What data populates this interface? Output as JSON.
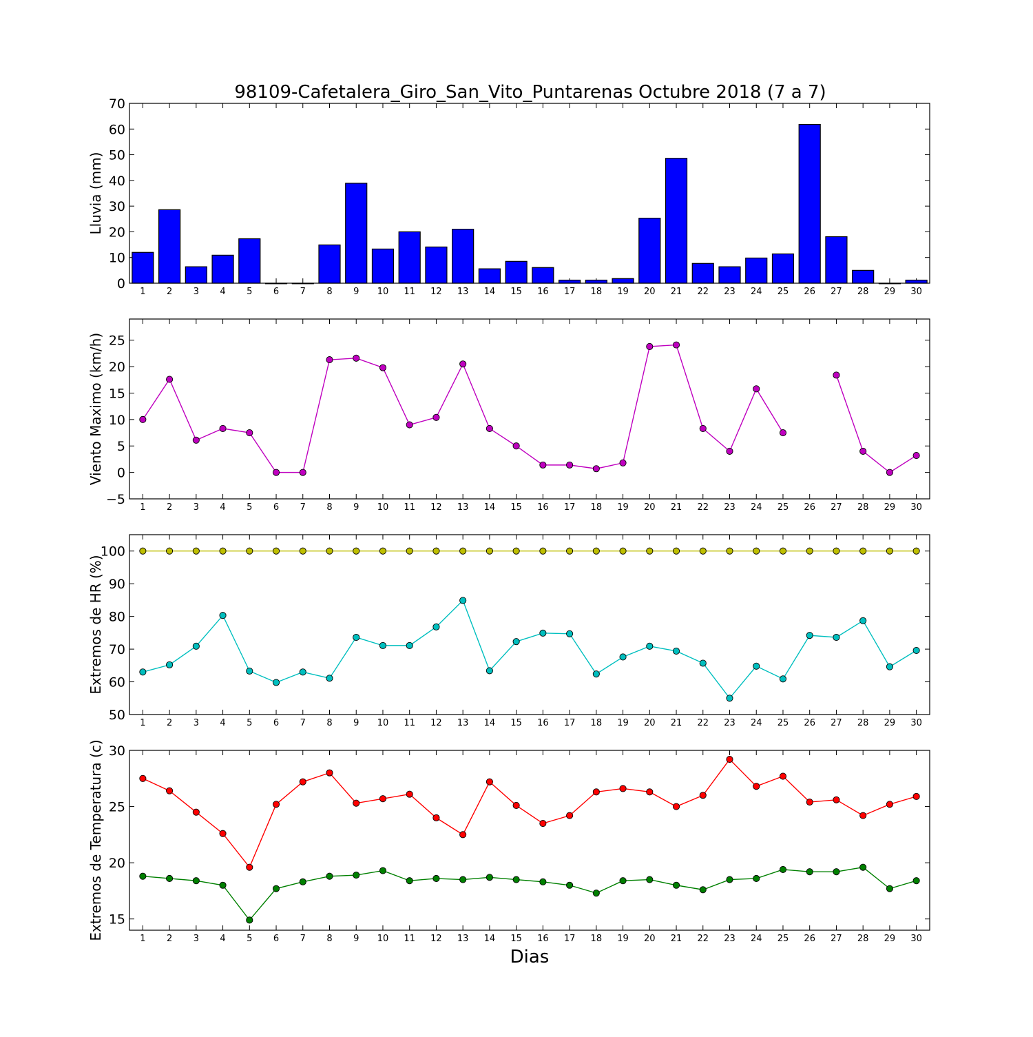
{
  "figure": {
    "title": "98109-Cafetalera_Giro_San_Vito_Puntarenas Octubre 2018  (7 a 7)",
    "xlabel": "Dias"
  },
  "chart_data": [
    {
      "type": "bar",
      "ylabel": "Lluvia (mm)",
      "xlim": [
        0.5,
        30.5
      ],
      "ylim": [
        0,
        70
      ],
      "yticks": [
        0,
        10,
        20,
        30,
        40,
        50,
        60,
        70
      ],
      "categories": [
        1,
        2,
        3,
        4,
        5,
        6,
        7,
        8,
        9,
        10,
        11,
        12,
        13,
        14,
        15,
        16,
        17,
        18,
        19,
        20,
        21,
        22,
        23,
        24,
        25,
        26,
        27,
        28,
        29,
        30
      ],
      "values": [
        12.0,
        28.6,
        6.4,
        10.9,
        17.3,
        0,
        0,
        14.9,
        38.9,
        13.3,
        20.0,
        14.1,
        21.0,
        5.6,
        8.5,
        6.1,
        1.2,
        1.2,
        1.8,
        25.3,
        48.6,
        7.7,
        6.4,
        9.8,
        11.4,
        61.8,
        18.1,
        5.0,
        0,
        1.2
      ],
      "color": "#0000ff"
    },
    {
      "type": "line",
      "ylabel": "Viento Maximo (km/h)",
      "xlim": [
        0.5,
        30.5
      ],
      "ylim": [
        -5,
        29
      ],
      "yticks": [
        -5,
        0,
        5,
        10,
        15,
        20,
        25
      ],
      "x": [
        1,
        2,
        3,
        4,
        5,
        6,
        7,
        8,
        9,
        10,
        11,
        12,
        13,
        14,
        15,
        16,
        17,
        18,
        19,
        20,
        21,
        22,
        23,
        24,
        25,
        26,
        27,
        28,
        29,
        30
      ],
      "series": [
        {
          "color": "#bf00bf",
          "values": [
            10.0,
            17.6,
            6.1,
            8.3,
            7.5,
            0,
            0,
            21.3,
            21.6,
            19.8,
            9.0,
            10.4,
            20.5,
            8.3,
            5.0,
            1.4,
            1.4,
            0.7,
            1.8,
            23.8,
            24.1,
            8.3,
            4.0,
            15.8,
            7.5,
            null,
            18.4,
            4.0,
            0,
            3.2
          ]
        }
      ]
    },
    {
      "type": "line",
      "ylabel": "Extremos de HR (%)",
      "xlim": [
        0.5,
        30.5
      ],
      "ylim": [
        50,
        105
      ],
      "yticks": [
        50,
        60,
        70,
        80,
        90,
        100
      ],
      "x": [
        1,
        2,
        3,
        4,
        5,
        6,
        7,
        8,
        9,
        10,
        11,
        12,
        13,
        14,
        15,
        16,
        17,
        18,
        19,
        20,
        21,
        22,
        23,
        24,
        25,
        26,
        27,
        28,
        29,
        30
      ],
      "series": [
        {
          "color": "#bfbf00",
          "values": [
            100,
            100,
            100,
            100,
            100,
            100,
            100,
            100,
            100,
            100,
            100,
            100,
            100,
            100,
            100,
            100,
            100,
            100,
            100,
            100,
            100,
            100,
            100,
            100,
            100,
            100,
            100,
            100,
            100,
            100
          ]
        },
        {
          "color": "#00bfbf",
          "values": [
            63.0,
            65.2,
            70.9,
            80.3,
            63.3,
            59.8,
            63.0,
            61.1,
            73.6,
            71.1,
            71.1,
            76.8,
            84.9,
            63.4,
            72.3,
            74.9,
            74.7,
            62.4,
            67.6,
            70.9,
            69.4,
            65.7,
            55.0,
            64.8,
            60.9,
            74.2,
            73.6,
            78.7,
            64.6,
            69.6
          ]
        }
      ]
    },
    {
      "type": "line",
      "ylabel": "Extremos de Temperatura (c)",
      "xlim": [
        0.5,
        30.5
      ],
      "ylim": [
        14,
        30
      ],
      "yticks": [
        15,
        20,
        25,
        30
      ],
      "x": [
        1,
        2,
        3,
        4,
        5,
        6,
        7,
        8,
        9,
        10,
        11,
        12,
        13,
        14,
        15,
        16,
        17,
        18,
        19,
        20,
        21,
        22,
        23,
        24,
        25,
        26,
        27,
        28,
        29,
        30
      ],
      "series": [
        {
          "color": "#ff0000",
          "values": [
            27.5,
            26.4,
            24.5,
            22.6,
            19.6,
            25.2,
            27.2,
            28.0,
            25.3,
            25.7,
            26.1,
            24.0,
            22.5,
            27.2,
            25.1,
            23.5,
            24.2,
            26.3,
            26.6,
            26.3,
            25.0,
            26.0,
            29.2,
            26.8,
            27.7,
            25.4,
            25.6,
            24.2,
            25.2,
            25.9
          ]
        },
        {
          "color": "#008000",
          "values": [
            18.8,
            18.6,
            18.4,
            18.0,
            14.9,
            17.7,
            18.3,
            18.8,
            18.9,
            19.3,
            18.4,
            18.6,
            18.5,
            18.7,
            18.5,
            18.3,
            18.0,
            17.3,
            18.4,
            18.5,
            18.0,
            17.6,
            18.5,
            18.6,
            19.4,
            19.2,
            19.2,
            19.6,
            17.7,
            18.4
          ]
        }
      ]
    }
  ]
}
